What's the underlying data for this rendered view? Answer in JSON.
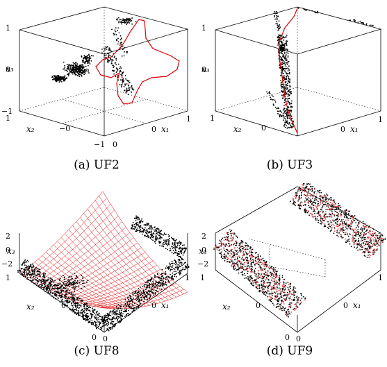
{
  "chart_data": [
    {
      "type": "scatter",
      "caption": "(a) UF2",
      "axes": {
        "x": "x₁",
        "y": "x₂",
        "z": "x₃"
      },
      "xlim": [
        0,
        1
      ],
      "ylim": [
        -1,
        1
      ],
      "zlim": [
        -1,
        1
      ],
      "x_ticks": [
        "0",
        "1"
      ],
      "y_ticks": [
        "1",
        "−0",
        "−1"
      ],
      "z_ticks": [
        "1",
        "0",
        "−1"
      ],
      "series": [
        {
          "kind": "points",
          "color": "#000000",
          "points": [
            [
              0.0,
              -0.1,
              -0.3
            ],
            [
              0.0,
              0.0,
              -0.3
            ],
            [
              0.05,
              0.1,
              -0.2
            ],
            [
              0.1,
              0.15,
              -0.1
            ],
            [
              0.15,
              0.2,
              0.0
            ],
            [
              0.2,
              0.3,
              0.1
            ],
            [
              0.25,
              0.35,
              0.1
            ],
            [
              0.3,
              0.45,
              0.0
            ],
            [
              0.35,
              0.5,
              -0.1
            ],
            [
              0.4,
              0.5,
              0.2
            ],
            [
              0.5,
              0.5,
              0.3
            ],
            [
              0.55,
              0.45,
              0.5
            ],
            [
              0.6,
              0.4,
              0.8
            ],
            [
              0.65,
              0.35,
              1.0
            ],
            [
              0.7,
              0.3,
              0.9
            ]
          ]
        },
        {
          "kind": "curve",
          "color": "#e00000",
          "points": [
            [
              0.95,
              0.15,
              1.0
            ],
            [
              0.9,
              0.45,
              0.6
            ],
            [
              0.8,
              0.6,
              0.25
            ],
            [
              0.7,
              0.5,
              0.1
            ],
            [
              0.5,
              0.3,
              -0.1
            ],
            [
              0.3,
              0.1,
              -0.05
            ],
            [
              0.3,
              0.1,
              0.2
            ],
            [
              0.35,
              0.15,
              0.5
            ],
            [
              0.45,
              0.2,
              0.7
            ],
            [
              0.55,
              0.2,
              0.75
            ],
            [
              0.7,
              0.25,
              0.4
            ],
            [
              1.0,
              0.1,
              -0.2
            ]
          ]
        }
      ]
    },
    {
      "type": "scatter",
      "caption": "(b) UF3",
      "axes": {
        "x": "x₁",
        "y": "x₂",
        "z": "x₃"
      },
      "xlim": [
        0,
        1
      ],
      "ylim": [
        0,
        1
      ],
      "zlim": [
        0,
        1
      ],
      "x_ticks": [
        "0",
        "1"
      ],
      "y_ticks": [
        "1",
        "0"
      ],
      "z_ticks": [
        "1",
        "0"
      ],
      "series": [
        {
          "kind": "points",
          "color": "#000000",
          "points": [
            [
              0.6,
              0.4,
              1.0
            ],
            [
              0.55,
              0.45,
              0.8
            ],
            [
              0.5,
              0.5,
              0.6
            ],
            [
              0.45,
              0.5,
              0.4
            ],
            [
              0.45,
              0.55,
              0.2
            ],
            [
              0.5,
              0.6,
              0.0
            ]
          ]
        },
        {
          "kind": "curve",
          "color": "#e00000",
          "points": [
            [
              1.0,
              0.0,
              1.0
            ],
            [
              0.8,
              0.2,
              0.7
            ],
            [
              0.6,
              0.4,
              0.3
            ],
            [
              0.5,
              0.5,
              0.0
            ]
          ]
        }
      ]
    },
    {
      "type": "scatter",
      "caption": "(c) UF8",
      "axes": {
        "x": "x₁",
        "y": "x₂",
        "z": "x₃"
      },
      "xlim": [
        0,
        1
      ],
      "ylim": [
        0,
        1
      ],
      "zlim": [
        -2,
        2
      ],
      "x_ticks": [
        "0",
        "1"
      ],
      "y_ticks": [
        "1",
        "0"
      ],
      "z_ticks": [
        "2",
        "0",
        "−2"
      ],
      "series": [
        {
          "kind": "points",
          "color": "#000000"
        },
        {
          "kind": "surface",
          "color": "#e00000"
        }
      ]
    },
    {
      "type": "scatter",
      "caption": "(d) UF9",
      "axes": {
        "x": "x₁",
        "y": "x₂",
        "z": "x₃"
      },
      "xlim": [
        0,
        1
      ],
      "ylim": [
        0,
        1
      ],
      "zlim": [
        -2,
        2
      ],
      "x_ticks": [
        "0",
        "1"
      ],
      "y_ticks": [
        "1",
        "0"
      ],
      "z_ticks": [
        "2",
        "0",
        "−2"
      ],
      "series": [
        {
          "kind": "points",
          "color": "#000000"
        },
        {
          "kind": "points",
          "color": "#e05050"
        }
      ]
    }
  ]
}
